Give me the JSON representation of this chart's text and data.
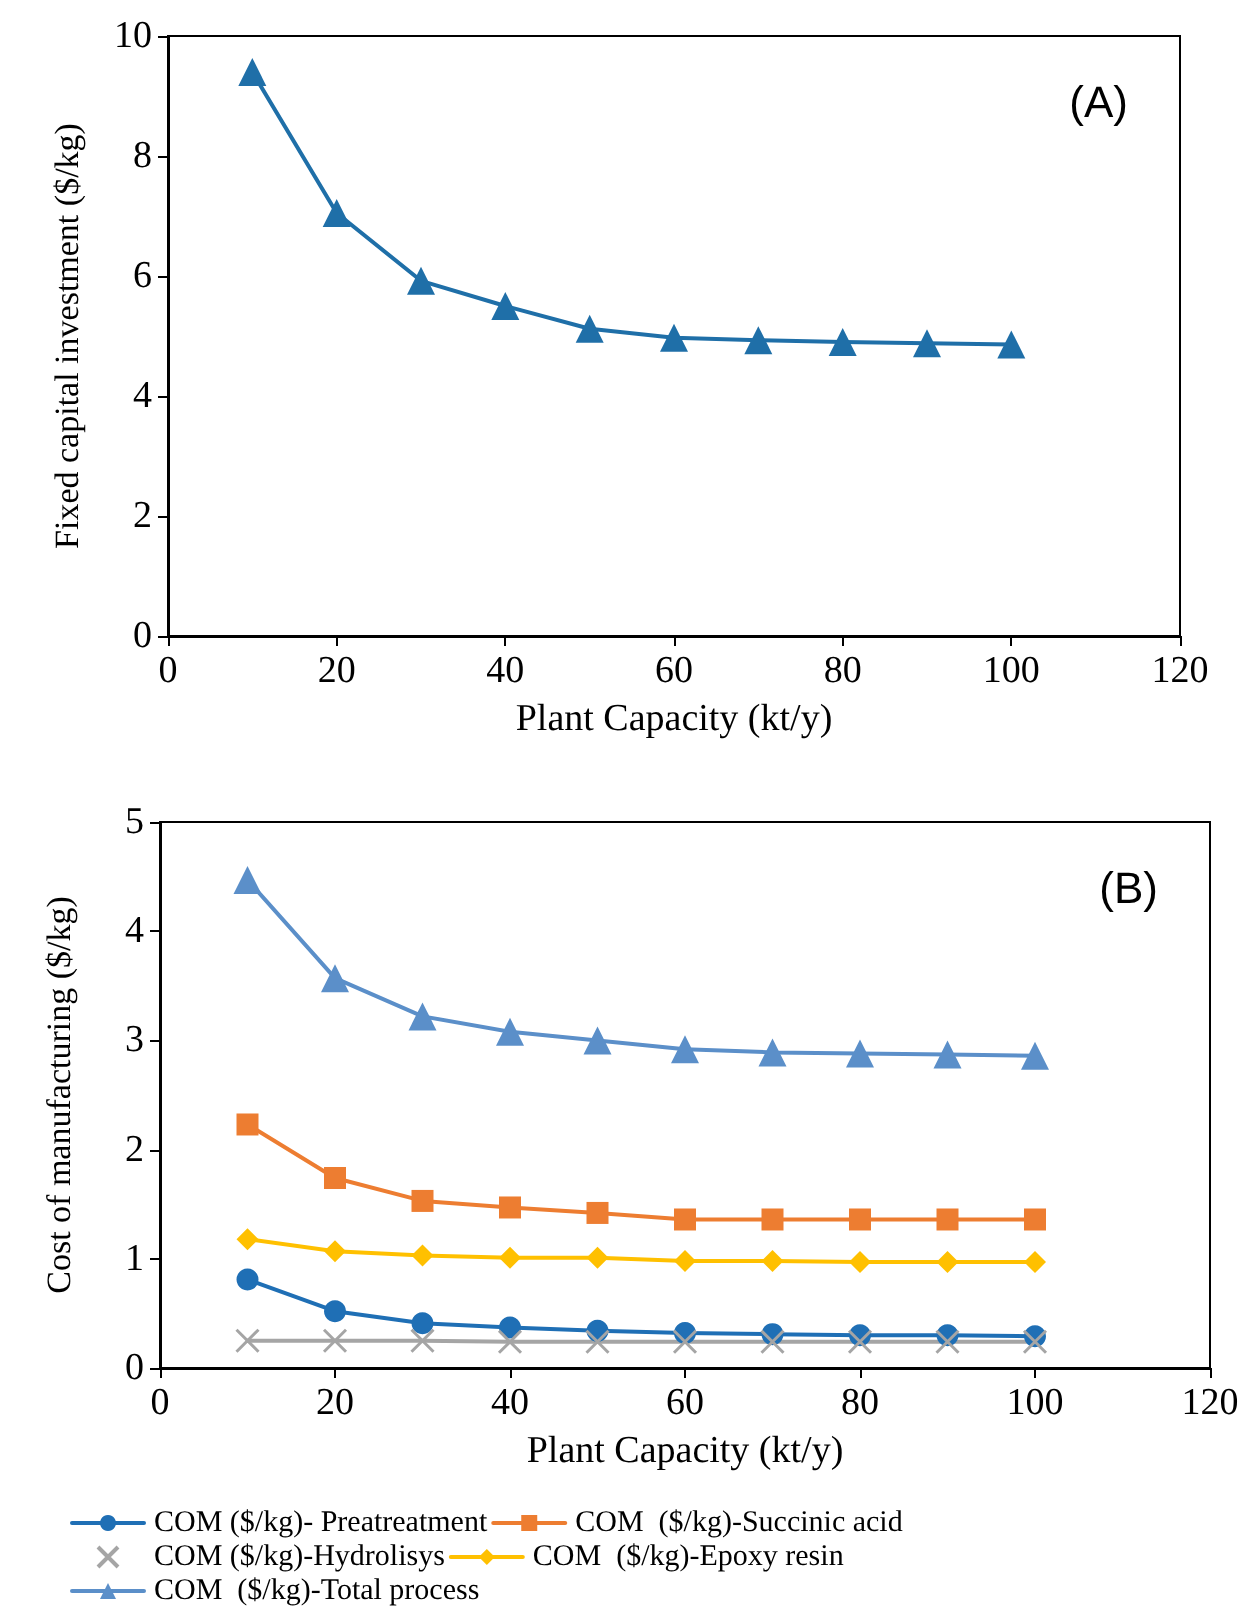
{
  "chart_data": [
    {
      "type": "line",
      "xlabel": "Plant Capacity (kt/y)",
      "ylabel": "Fixed capital investment ($/kg)",
      "annotations": [
        "(A)"
      ],
      "x": [
        10,
        20,
        30,
        40,
        50,
        60,
        70,
        80,
        90,
        100
      ],
      "series": [
        {
          "color": "#1f6fa8",
          "marker": "triangle",
          "values": [
            9.4,
            7.05,
            5.92,
            5.5,
            5.12,
            4.97,
            4.93,
            4.9,
            4.88,
            4.86
          ]
        }
      ],
      "xlim": [
        0,
        120
      ],
      "xticks": [
        0,
        20,
        40,
        60,
        80,
        100,
        120
      ],
      "ylim": [
        0,
        10
      ],
      "yticks": [
        0,
        2,
        4,
        6,
        8,
        10
      ],
      "grid": false,
      "legend": false,
      "line_style": "solid"
    },
    {
      "type": "line",
      "xlabel": "Plant Capacity (kt/y)",
      "ylabel": "Cost of manufacturing ($/kg)",
      "annotations": [
        "(B)"
      ],
      "x": [
        10,
        20,
        30,
        40,
        50,
        60,
        70,
        80,
        90,
        100
      ],
      "series": [
        {
          "name": "COM ($/kg)- Preatreatment",
          "color": "#1f6fb5",
          "marker": "circle",
          "values": [
            0.81,
            0.52,
            0.41,
            0.37,
            0.34,
            0.32,
            0.31,
            0.3,
            0.3,
            0.29
          ]
        },
        {
          "name": "COM  ($/kg)-Succinic acid",
          "color": "#ed7d31",
          "marker": "square",
          "values": [
            2.23,
            1.74,
            1.53,
            1.47,
            1.42,
            1.36,
            1.36,
            1.36,
            1.36,
            1.36
          ]
        },
        {
          "name": "COM ($/kg)-Hydrolisys",
          "color": "#a5a5a5",
          "marker": "cross",
          "values": [
            0.25,
            0.25,
            0.25,
            0.24,
            0.24,
            0.24,
            0.24,
            0.24,
            0.24,
            0.24
          ]
        },
        {
          "name": "COM  ($/kg)-Epoxy resin",
          "color": "#ffc000",
          "marker": "diamond",
          "values": [
            1.18,
            1.07,
            1.03,
            1.01,
            1.01,
            0.98,
            0.98,
            0.97,
            0.97,
            0.97
          ]
        },
        {
          "name": "COM  ($/kg)-Total process",
          "color": "#5b8fc9",
          "marker": "triangle",
          "values": [
            4.47,
            3.57,
            3.22,
            3.08,
            3.0,
            2.92,
            2.89,
            2.88,
            2.87,
            2.86
          ]
        }
      ],
      "xlim": [
        0,
        120
      ],
      "xticks": [
        0,
        20,
        40,
        60,
        80,
        100,
        120
      ],
      "ylim": [
        0,
        5
      ],
      "yticks": [
        0,
        1,
        2,
        3,
        4,
        5
      ],
      "grid": false,
      "legend": "bottom",
      "line_style": "solid"
    }
  ]
}
